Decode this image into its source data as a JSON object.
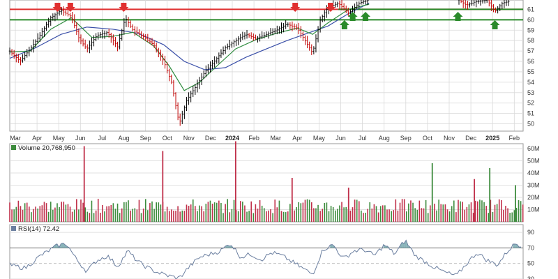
{
  "chart_data": {
    "type": "line",
    "colors": {
      "price": "#000000",
      "ma_short": "#2e8b3e",
      "ma_long": "#3a4fa8",
      "resistance": "#e03030",
      "support": "#2a8a2a",
      "volume_up": "#3d8b3d",
      "volume_down": "#c0304a",
      "rsi": "#6b7fa0",
      "grid": "#d9d9d9",
      "panel_border": "#9a9a9a"
    },
    "price_panel": {
      "y_ticks": [
        50,
        51,
        52,
        53,
        54,
        55,
        56,
        57,
        58,
        59,
        60,
        61
      ],
      "ylim": [
        49.3,
        61.9
      ],
      "resistance_levels": [
        61.0
      ],
      "support_levels": [
        61.0,
        60.0
      ],
      "sell_markers": [
        "Apr '23",
        "May '23",
        "Aug '23",
        "Apr '24",
        "May '24"
      ],
      "buy_markers": [
        "Jun '24",
        "Jun '24",
        "Jul '24",
        "Nov '24",
        "Jan '25"
      ],
      "price_path": [
        {
          "x": 0.0,
          "y": 57.0
        },
        {
          "x": 0.02,
          "y": 56.0
        },
        {
          "x": 0.04,
          "y": 57.2
        },
        {
          "x": 0.06,
          "y": 58.6
        },
        {
          "x": 0.08,
          "y": 60.2
        },
        {
          "x": 0.1,
          "y": 60.9
        },
        {
          "x": 0.12,
          "y": 60.3
        },
        {
          "x": 0.135,
          "y": 58.2
        },
        {
          "x": 0.15,
          "y": 57.2
        },
        {
          "x": 0.17,
          "y": 58.5
        },
        {
          "x": 0.19,
          "y": 58.8
        },
        {
          "x": 0.21,
          "y": 57.4
        },
        {
          "x": 0.225,
          "y": 60.2
        },
        {
          "x": 0.24,
          "y": 59.0
        },
        {
          "x": 0.26,
          "y": 58.4
        },
        {
          "x": 0.28,
          "y": 57.6
        },
        {
          "x": 0.3,
          "y": 56.0
        },
        {
          "x": 0.315,
          "y": 54.0
        },
        {
          "x": 0.33,
          "y": 50.0
        },
        {
          "x": 0.345,
          "y": 52.3
        },
        {
          "x": 0.36,
          "y": 53.4
        },
        {
          "x": 0.38,
          "y": 55.0
        },
        {
          "x": 0.4,
          "y": 56.1
        },
        {
          "x": 0.42,
          "y": 57.3
        },
        {
          "x": 0.44,
          "y": 58.0
        },
        {
          "x": 0.46,
          "y": 58.6
        },
        {
          "x": 0.48,
          "y": 58.2
        },
        {
          "x": 0.5,
          "y": 58.6
        },
        {
          "x": 0.52,
          "y": 59.0
        },
        {
          "x": 0.54,
          "y": 59.6
        },
        {
          "x": 0.56,
          "y": 59.2
        },
        {
          "x": 0.575,
          "y": 58.0
        },
        {
          "x": 0.59,
          "y": 56.8
        },
        {
          "x": 0.605,
          "y": 60.0
        },
        {
          "x": 0.62,
          "y": 61.2
        },
        {
          "x": 0.64,
          "y": 61.6
        },
        {
          "x": 0.66,
          "y": 60.6
        },
        {
          "x": 0.68,
          "y": 61.6
        },
        {
          "x": 0.7,
          "y": 61.9
        }
      ],
      "price_path_tail": [
        {
          "x": 0.875,
          "y": 61.9
        },
        {
          "x": 0.89,
          "y": 61.4
        },
        {
          "x": 0.905,
          "y": 61.7
        },
        {
          "x": 0.93,
          "y": 61.9
        },
        {
          "x": 0.945,
          "y": 60.8
        },
        {
          "x": 0.96,
          "y": 61.6
        },
        {
          "x": 0.975,
          "y": 61.8
        }
      ],
      "ma_short_path": [
        {
          "x": 0.0,
          "y": 56.9
        },
        {
          "x": 0.04,
          "y": 57.0
        },
        {
          "x": 0.08,
          "y": 59.1
        },
        {
          "x": 0.12,
          "y": 60.2
        },
        {
          "x": 0.16,
          "y": 58.3
        },
        {
          "x": 0.2,
          "y": 58.4
        },
        {
          "x": 0.24,
          "y": 58.8
        },
        {
          "x": 0.28,
          "y": 57.5
        },
        {
          "x": 0.31,
          "y": 55.6
        },
        {
          "x": 0.34,
          "y": 53.2
        },
        {
          "x": 0.37,
          "y": 54.0
        },
        {
          "x": 0.4,
          "y": 55.4
        },
        {
          "x": 0.44,
          "y": 57.2
        },
        {
          "x": 0.48,
          "y": 58.1
        },
        {
          "x": 0.52,
          "y": 58.7
        },
        {
          "x": 0.56,
          "y": 59.2
        },
        {
          "x": 0.59,
          "y": 58.6
        },
        {
          "x": 0.62,
          "y": 59.7
        },
        {
          "x": 0.66,
          "y": 61.0
        },
        {
          "x": 0.7,
          "y": 61.5
        }
      ],
      "ma_long_path": [
        {
          "x": 0.0,
          "y": 56.3
        },
        {
          "x": 0.05,
          "y": 57.3
        },
        {
          "x": 0.1,
          "y": 58.6
        },
        {
          "x": 0.15,
          "y": 59.3
        },
        {
          "x": 0.2,
          "y": 59.1
        },
        {
          "x": 0.25,
          "y": 58.7
        },
        {
          "x": 0.3,
          "y": 57.6
        },
        {
          "x": 0.34,
          "y": 56.0
        },
        {
          "x": 0.38,
          "y": 55.2
        },
        {
          "x": 0.42,
          "y": 55.4
        },
        {
          "x": 0.46,
          "y": 56.4
        },
        {
          "x": 0.5,
          "y": 57.2
        },
        {
          "x": 0.54,
          "y": 58.0
        },
        {
          "x": 0.58,
          "y": 58.7
        },
        {
          "x": 0.62,
          "y": 59.4
        },
        {
          "x": 0.66,
          "y": 60.6
        },
        {
          "x": 0.7,
          "y": 61.6
        }
      ]
    },
    "x_axis": {
      "labels": [
        {
          "text": "Mar",
          "bold": false
        },
        {
          "text": "Apr",
          "bold": false
        },
        {
          "text": "May",
          "bold": false
        },
        {
          "text": "Jun",
          "bold": false
        },
        {
          "text": "Jul",
          "bold": false
        },
        {
          "text": "Aug",
          "bold": false
        },
        {
          "text": "Sep",
          "bold": false
        },
        {
          "text": "Oct",
          "bold": false
        },
        {
          "text": "Nov",
          "bold": false
        },
        {
          "text": "Dec",
          "bold": false
        },
        {
          "text": "2024",
          "bold": true
        },
        {
          "text": "Feb",
          "bold": false
        },
        {
          "text": "Mar",
          "bold": false
        },
        {
          "text": "Apr",
          "bold": false
        },
        {
          "text": "May",
          "bold": false
        },
        {
          "text": "Jun",
          "bold": false
        },
        {
          "text": "Jul",
          "bold": false
        },
        {
          "text": "Aug",
          "bold": false
        },
        {
          "text": "Sep",
          "bold": false
        },
        {
          "text": "Oct",
          "bold": false
        },
        {
          "text": "Nov",
          "bold": false
        },
        {
          "text": "Dec",
          "bold": false
        },
        {
          "text": "2025",
          "bold": true
        },
        {
          "text": "Feb",
          "bold": false
        }
      ]
    },
    "volume_panel": {
      "legend": "Volume 20,768,950",
      "y_ticks": [
        {
          "value": 10,
          "label": "10M"
        },
        {
          "value": 20,
          "label": "20M"
        },
        {
          "value": 30,
          "label": "30M"
        },
        {
          "value": 40,
          "label": "40M"
        },
        {
          "value": 50,
          "label": "50M"
        },
        {
          "value": 60,
          "label": "60M"
        }
      ],
      "ylim": [
        0,
        64
      ],
      "baseline_millions": 13,
      "spikes": [
        {
          "x": 0.145,
          "value": 62,
          "up": false
        },
        {
          "x": 0.298,
          "value": 58,
          "up": false
        },
        {
          "x": 0.44,
          "value": 67,
          "up": false
        },
        {
          "x": 0.55,
          "value": 36,
          "up": false
        },
        {
          "x": 0.66,
          "value": 28,
          "up": false
        },
        {
          "x": 0.823,
          "value": 48,
          "up": true
        },
        {
          "x": 0.905,
          "value": 35,
          "up": false
        },
        {
          "x": 0.935,
          "value": 44,
          "up": true
        },
        {
          "x": 0.985,
          "value": 30,
          "up": true
        }
      ]
    },
    "rsi_panel": {
      "legend": "RSI(14) 72.42",
      "y_ticks": [
        30,
        50,
        70,
        90
      ],
      "ylim": [
        30,
        100
      ],
      "overbought": 70,
      "oversold": 30,
      "rsi_path": [
        {
          "x": 0.0,
          "y": 48
        },
        {
          "x": 0.03,
          "y": 44
        },
        {
          "x": 0.06,
          "y": 60
        },
        {
          "x": 0.09,
          "y": 72
        },
        {
          "x": 0.11,
          "y": 76
        },
        {
          "x": 0.13,
          "y": 55
        },
        {
          "x": 0.15,
          "y": 40
        },
        {
          "x": 0.17,
          "y": 54
        },
        {
          "x": 0.19,
          "y": 60
        },
        {
          "x": 0.21,
          "y": 46
        },
        {
          "x": 0.23,
          "y": 66
        },
        {
          "x": 0.25,
          "y": 52
        },
        {
          "x": 0.27,
          "y": 44
        },
        {
          "x": 0.29,
          "y": 38
        },
        {
          "x": 0.31,
          "y": 34
        },
        {
          "x": 0.33,
          "y": 31
        },
        {
          "x": 0.35,
          "y": 46
        },
        {
          "x": 0.37,
          "y": 58
        },
        {
          "x": 0.39,
          "y": 62
        },
        {
          "x": 0.41,
          "y": 66
        },
        {
          "x": 0.43,
          "y": 76
        },
        {
          "x": 0.45,
          "y": 58
        },
        {
          "x": 0.47,
          "y": 62
        },
        {
          "x": 0.49,
          "y": 55
        },
        {
          "x": 0.51,
          "y": 64
        },
        {
          "x": 0.53,
          "y": 60
        },
        {
          "x": 0.55,
          "y": 52
        },
        {
          "x": 0.57,
          "y": 44
        },
        {
          "x": 0.59,
          "y": 36
        },
        {
          "x": 0.61,
          "y": 68
        },
        {
          "x": 0.63,
          "y": 74
        },
        {
          "x": 0.65,
          "y": 56
        },
        {
          "x": 0.67,
          "y": 66
        },
        {
          "x": 0.69,
          "y": 68
        },
        {
          "x": 0.71,
          "y": 60
        },
        {
          "x": 0.73,
          "y": 74
        },
        {
          "x": 0.75,
          "y": 62
        },
        {
          "x": 0.77,
          "y": 80
        },
        {
          "x": 0.79,
          "y": 60
        },
        {
          "x": 0.81,
          "y": 52
        },
        {
          "x": 0.83,
          "y": 44
        },
        {
          "x": 0.85,
          "y": 38
        },
        {
          "x": 0.87,
          "y": 34
        },
        {
          "x": 0.89,
          "y": 50
        },
        {
          "x": 0.91,
          "y": 64
        },
        {
          "x": 0.93,
          "y": 54
        },
        {
          "x": 0.95,
          "y": 48
        },
        {
          "x": 0.97,
          "y": 66
        },
        {
          "x": 0.985,
          "y": 76
        },
        {
          "x": 1.0,
          "y": 72
        }
      ]
    }
  }
}
